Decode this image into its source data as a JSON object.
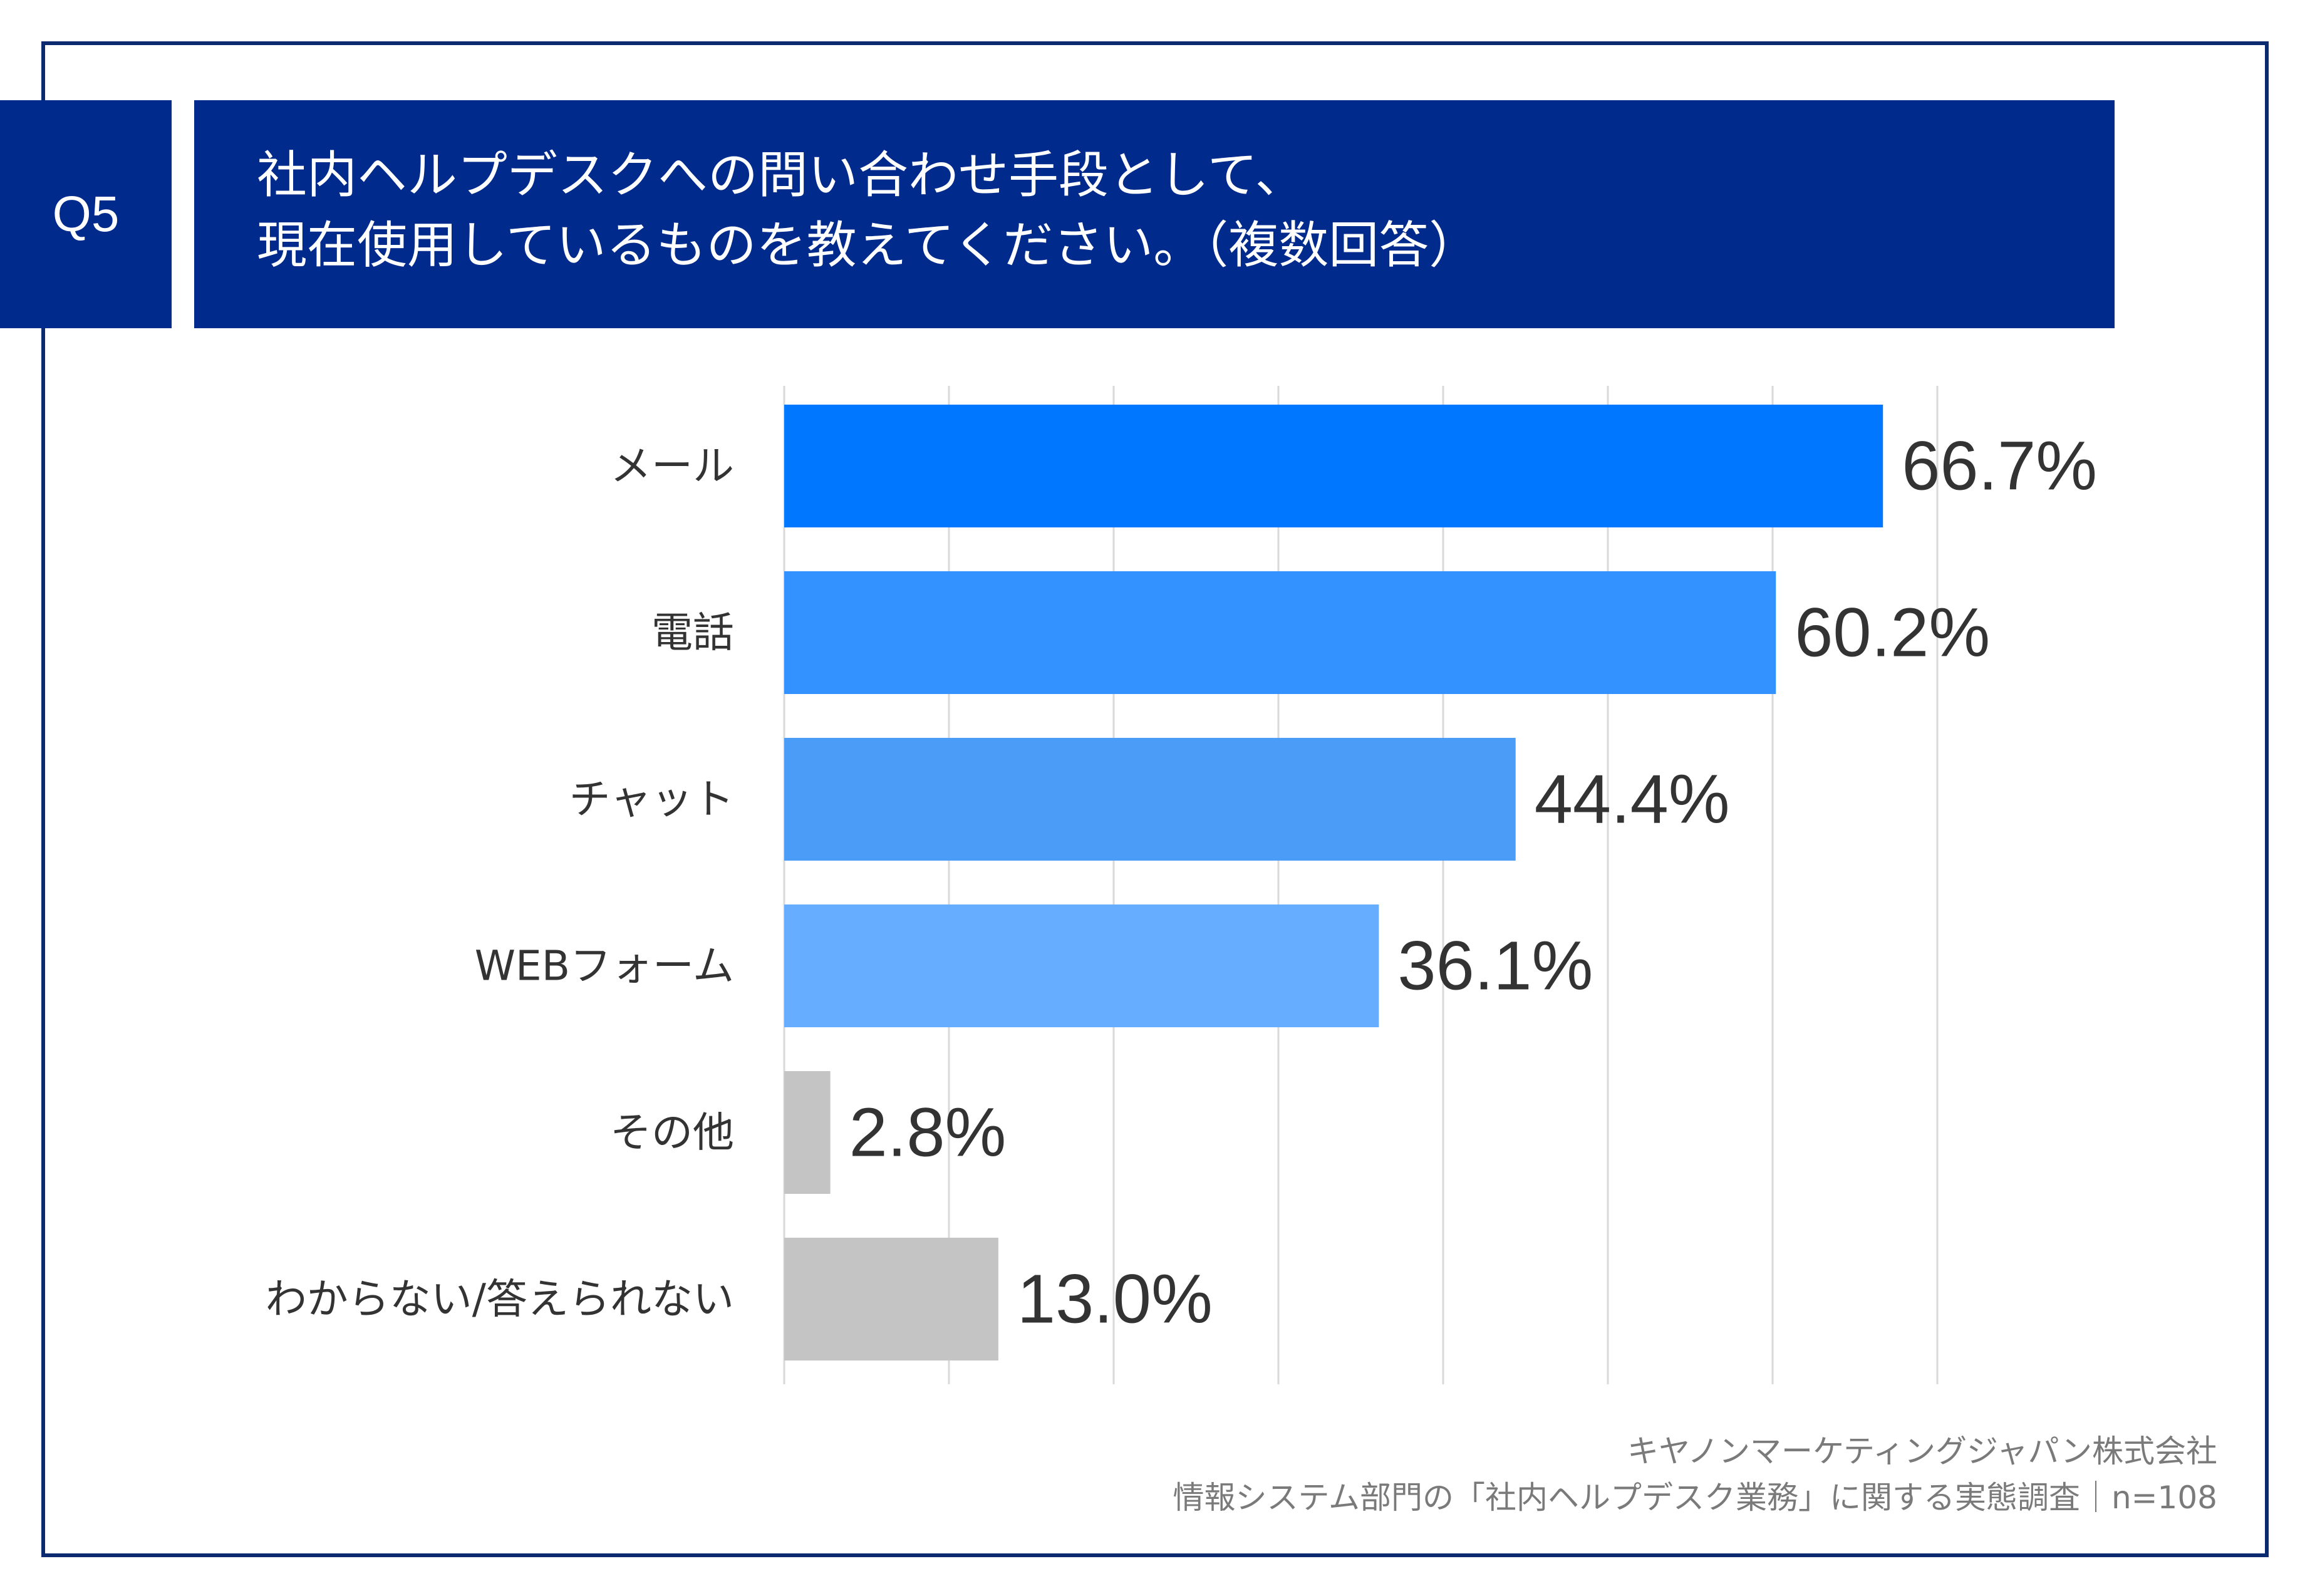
{
  "question": {
    "badge": "Q5",
    "title_line1": "社内ヘルプデスクへの問い合わせ手段として、",
    "title_line2": "現在使用しているものを教えてください。（複数回答）"
  },
  "chart_data": {
    "type": "bar",
    "orientation": "horizontal",
    "categories": [
      "メール",
      "電話",
      "チャット",
      "WEBフォーム",
      "その他",
      "わからない/答えられない"
    ],
    "values": [
      66.7,
      60.2,
      44.4,
      36.1,
      2.8,
      13.0
    ],
    "value_labels": [
      "66.7%",
      "60.2%",
      "44.4%",
      "36.1%",
      "2.8%",
      "13.0%"
    ],
    "colors": [
      "#0077ff",
      "#3392ff",
      "#4a9cf7",
      "#66adff",
      "#c4c4c4",
      "#c4c4c4"
    ],
    "xlim": [
      0,
      70
    ],
    "grid_step": 10,
    "grid": true
  },
  "source": {
    "line1": "キヤノンマーケティングジャパン株式会社",
    "line2": "情報システム部門の「社内ヘルプデスク業務」に関する実態調査｜n=108"
  }
}
